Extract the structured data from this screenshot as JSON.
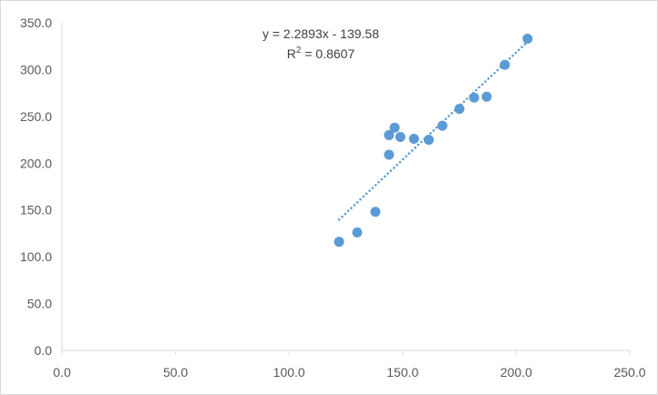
{
  "chart_data": {
    "type": "scatter",
    "title": "",
    "xlabel": "",
    "ylabel": "",
    "xlim": [
      0,
      250
    ],
    "ylim": [
      0,
      350
    ],
    "x_ticks": [
      "0.0",
      "50.0",
      "100.0",
      "150.0",
      "200.0",
      "250.0"
    ],
    "y_ticks": [
      "0.0",
      "50.0",
      "100.0",
      "150.0",
      "200.0",
      "250.0",
      "300.0",
      "350.0"
    ],
    "x_tick_values": [
      0,
      50,
      100,
      150,
      200,
      250
    ],
    "y_tick_values": [
      0,
      50,
      100,
      150,
      200,
      250,
      300,
      350
    ],
    "grid": false,
    "legend": "none",
    "series": [
      {
        "color": "#5b9bd5",
        "points": [
          {
            "x": 122,
            "y": 116
          },
          {
            "x": 130,
            "y": 126
          },
          {
            "x": 138,
            "y": 148
          },
          {
            "x": 144,
            "y": 209
          },
          {
            "x": 144,
            "y": 230
          },
          {
            "x": 146.5,
            "y": 238
          },
          {
            "x": 149,
            "y": 228
          },
          {
            "x": 155,
            "y": 226
          },
          {
            "x": 161.5,
            "y": 225
          },
          {
            "x": 167.5,
            "y": 240
          },
          {
            "x": 175,
            "y": 258
          },
          {
            "x": 181.5,
            "y": 270
          },
          {
            "x": 187,
            "y": 271
          },
          {
            "x": 195,
            "y": 305
          },
          {
            "x": 205,
            "y": 333
          }
        ]
      }
    ],
    "trendline": {
      "type": "linear",
      "slope": 2.2893,
      "intercept": -139.58,
      "x_range": [
        122,
        205
      ],
      "style": "dotted",
      "color": "#5b9bd5",
      "equation_text": "y = 2.2893x - 139.58",
      "r2_prefix": "R",
      "r2_superscript": "2",
      "r2_suffix": " = 0.8607"
    },
    "axis_color": "#d9d9d9"
  }
}
